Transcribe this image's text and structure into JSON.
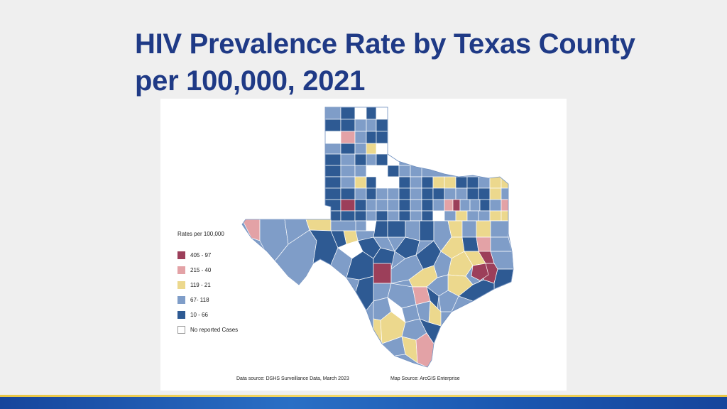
{
  "title": {
    "line1": "HIV Prevalence Rate by Texas County",
    "line2": "per 100,000, 2021"
  },
  "legend": {
    "title": "Rates per 100,000",
    "items": [
      {
        "label": "405 - 97",
        "color": "#9c3f5a"
      },
      {
        "label": "215 - 40",
        "color": "#e3a2a6"
      },
      {
        "label": "119 - 21",
        "color": "#ecd88d"
      },
      {
        "label": "67- 118",
        "color": "#7f9dc8"
      },
      {
        "label": "10 - 66",
        "color": "#2e5a93"
      },
      {
        "label": "No reported Cases",
        "color": "#ffffff"
      }
    ]
  },
  "sources": {
    "data": "Data source: DSHS Surveillance Data, March 2023",
    "map": "Map Source: ArcGIS Enterprise"
  },
  "colors": {
    "title": "#1f3a86",
    "border": "#8fa6c8",
    "highlight_harris": "#9c3f5a"
  }
}
